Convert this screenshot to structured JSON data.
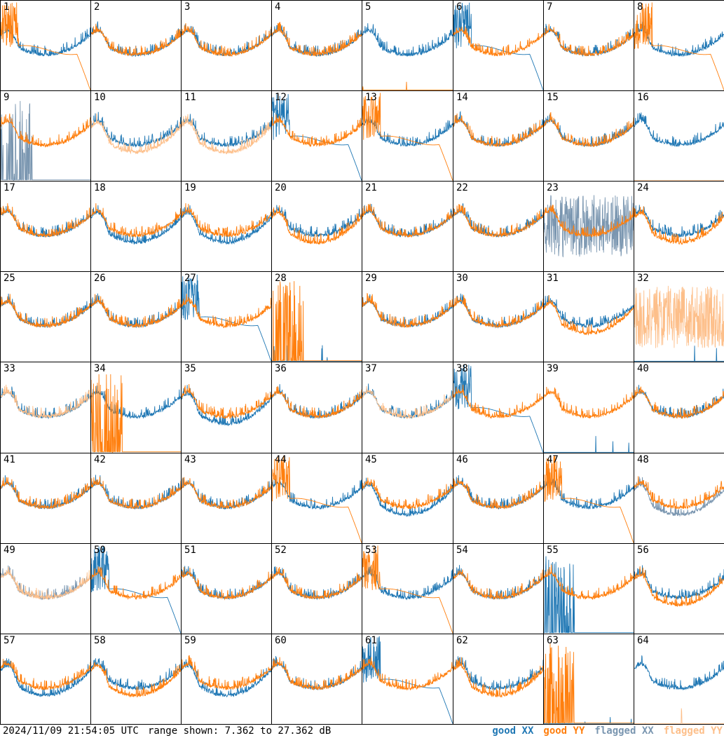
{
  "timestamp": "2024/11/09 21:54:05 UTC",
  "range_text": "range shown: 7.362 to 27.362 dB",
  "legend": [
    {
      "key": "good_xx",
      "label": "good XX",
      "color": "#1f77b4"
    },
    {
      "key": "good_yy",
      "label": "good YY",
      "color": "#ff7f0e"
    },
    {
      "key": "flagged_xx",
      "label": "flagged XX",
      "color": "#7a96b0"
    },
    {
      "key": "flagged_yy",
      "label": "flagged YY",
      "color": "#fdbf8a"
    }
  ],
  "chart_data": {
    "type": "line",
    "title": "",
    "ylabel": "",
    "ylim": [
      7.362,
      27.362
    ],
    "unit": "dB",
    "grid": false,
    "panels": [
      {
        "id": "1",
        "xx": "good",
        "yy": "good",
        "xx_profile": "normal",
        "yy_profile": "rolloff"
      },
      {
        "id": "2",
        "xx": "good",
        "yy": "good",
        "xx_profile": "normal",
        "yy_profile": "normal"
      },
      {
        "id": "3",
        "xx": "good",
        "yy": "good",
        "xx_profile": "normal",
        "yy_profile": "normal"
      },
      {
        "id": "4",
        "xx": "good",
        "yy": "good",
        "xx_profile": "normal",
        "yy_profile": "normal"
      },
      {
        "id": "5",
        "xx": "good",
        "yy": "good",
        "xx_profile": "normal",
        "yy_profile": "dead"
      },
      {
        "id": "6",
        "xx": "good",
        "yy": "good",
        "xx_profile": "rolloff",
        "yy_profile": "normal"
      },
      {
        "id": "7",
        "xx": "good",
        "yy": "good",
        "xx_profile": "normal",
        "yy_profile": "normal"
      },
      {
        "id": "8",
        "xx": "good",
        "yy": "good",
        "xx_profile": "normal",
        "yy_profile": "rolloff"
      },
      {
        "id": "9",
        "xx": "flagged",
        "yy": "good",
        "xx_profile": "spiky",
        "yy_profile": "normal"
      },
      {
        "id": "10",
        "xx": "good",
        "yy": "flagged",
        "xx_profile": "normal",
        "yy_profile": "low"
      },
      {
        "id": "11",
        "xx": "good",
        "yy": "flagged",
        "xx_profile": "normal",
        "yy_profile": "low"
      },
      {
        "id": "12",
        "xx": "good",
        "yy": "good",
        "xx_profile": "rolloff",
        "yy_profile": "normal"
      },
      {
        "id": "13",
        "xx": "good",
        "yy": "good",
        "xx_profile": "normal",
        "yy_profile": "rolloff"
      },
      {
        "id": "14",
        "xx": "good",
        "yy": "good",
        "xx_profile": "normal",
        "yy_profile": "normal"
      },
      {
        "id": "15",
        "xx": "good",
        "yy": "good",
        "xx_profile": "normal",
        "yy_profile": "normal"
      },
      {
        "id": "16",
        "xx": "good",
        "yy": "flagged",
        "xx_profile": "normal",
        "yy_profile": "dead"
      },
      {
        "id": "17",
        "xx": "good",
        "yy": "good",
        "xx_profile": "normal",
        "yy_profile": "normal"
      },
      {
        "id": "18",
        "xx": "good",
        "yy": "good",
        "xx_profile": "low",
        "yy_profile": "normal"
      },
      {
        "id": "19",
        "xx": "good",
        "yy": "good",
        "xx_profile": "low",
        "yy_profile": "normal"
      },
      {
        "id": "20",
        "xx": "good",
        "yy": "good",
        "xx_profile": "normal",
        "yy_profile": "low"
      },
      {
        "id": "21",
        "xx": "good",
        "yy": "good",
        "xx_profile": "normal",
        "yy_profile": "normal"
      },
      {
        "id": "22",
        "xx": "good",
        "yy": "good",
        "xx_profile": "normal",
        "yy_profile": "normal"
      },
      {
        "id": "23",
        "xx": "flagged",
        "yy": "good",
        "xx_profile": "noisy",
        "yy_profile": "normal"
      },
      {
        "id": "24",
        "xx": "good",
        "yy": "good",
        "xx_profile": "normal",
        "yy_profile": "low"
      },
      {
        "id": "25",
        "xx": "good",
        "yy": "good",
        "xx_profile": "normal",
        "yy_profile": "normal"
      },
      {
        "id": "26",
        "xx": "good",
        "yy": "good",
        "xx_profile": "normal",
        "yy_profile": "normal"
      },
      {
        "id": "27",
        "xx": "good",
        "yy": "good",
        "xx_profile": "rolloff",
        "yy_profile": "normal"
      },
      {
        "id": "28",
        "xx": "good",
        "yy": "good",
        "xx_profile": "dead",
        "yy_profile": "spiky"
      },
      {
        "id": "29",
        "xx": "good",
        "yy": "good",
        "xx_profile": "normal",
        "yy_profile": "normal"
      },
      {
        "id": "30",
        "xx": "good",
        "yy": "good",
        "xx_profile": "normal",
        "yy_profile": "normal"
      },
      {
        "id": "31",
        "xx": "good",
        "yy": "good",
        "xx_profile": "normal",
        "yy_profile": "low"
      },
      {
        "id": "32",
        "xx": "good",
        "yy": "flagged",
        "xx_profile": "dead",
        "yy_profile": "noisy"
      },
      {
        "id": "33",
        "xx": "good",
        "yy": "flagged",
        "xx_profile": "normal",
        "yy_profile": "normal"
      },
      {
        "id": "34",
        "xx": "good",
        "yy": "good",
        "xx_profile": "normal",
        "yy_profile": "spiky"
      },
      {
        "id": "35",
        "xx": "good",
        "yy": "good",
        "xx_profile": "low",
        "yy_profile": "normal"
      },
      {
        "id": "36",
        "xx": "good",
        "yy": "good",
        "xx_profile": "normal",
        "yy_profile": "normal"
      },
      {
        "id": "37",
        "xx": "good",
        "yy": "flagged",
        "xx_profile": "normal",
        "yy_profile": "normal"
      },
      {
        "id": "38",
        "xx": "good",
        "yy": "good",
        "xx_profile": "rolloff",
        "yy_profile": "normal"
      },
      {
        "id": "39",
        "xx": "good",
        "yy": "good",
        "xx_profile": "dead",
        "yy_profile": "normal"
      },
      {
        "id": "40",
        "xx": "good",
        "yy": "good",
        "xx_profile": "normal",
        "yy_profile": "normal"
      },
      {
        "id": "41",
        "xx": "good",
        "yy": "good",
        "xx_profile": "normal",
        "yy_profile": "normal"
      },
      {
        "id": "42",
        "xx": "good",
        "yy": "good",
        "xx_profile": "normal",
        "yy_profile": "normal"
      },
      {
        "id": "43",
        "xx": "good",
        "yy": "good",
        "xx_profile": "normal",
        "yy_profile": "normal"
      },
      {
        "id": "44",
        "xx": "good",
        "yy": "good",
        "xx_profile": "normal",
        "yy_profile": "rolloff"
      },
      {
        "id": "45",
        "xx": "good",
        "yy": "good",
        "xx_profile": "low",
        "yy_profile": "normal"
      },
      {
        "id": "46",
        "xx": "good",
        "yy": "good",
        "xx_profile": "normal",
        "yy_profile": "normal"
      },
      {
        "id": "47",
        "xx": "good",
        "yy": "good",
        "xx_profile": "normal",
        "yy_profile": "rolloff"
      },
      {
        "id": "48",
        "xx": "flagged",
        "yy": "good",
        "xx_profile": "low",
        "yy_profile": "normal"
      },
      {
        "id": "49",
        "xx": "flagged",
        "yy": "flagged",
        "xx_profile": "normal",
        "yy_profile": "normal"
      },
      {
        "id": "50",
        "xx": "good",
        "yy": "good",
        "xx_profile": "rolloff",
        "yy_profile": "normal"
      },
      {
        "id": "51",
        "xx": "good",
        "yy": "good",
        "xx_profile": "normal",
        "yy_profile": "normal"
      },
      {
        "id": "52",
        "xx": "good",
        "yy": "good",
        "xx_profile": "normal",
        "yy_profile": "normal"
      },
      {
        "id": "53",
        "xx": "good",
        "yy": "good",
        "xx_profile": "normal",
        "yy_profile": "rolloff"
      },
      {
        "id": "54",
        "xx": "good",
        "yy": "good",
        "xx_profile": "normal",
        "yy_profile": "normal"
      },
      {
        "id": "55",
        "xx": "good",
        "yy": "good",
        "xx_profile": "spiky",
        "yy_profile": "normal"
      },
      {
        "id": "56",
        "xx": "good",
        "yy": "good",
        "xx_profile": "normal",
        "yy_profile": "low"
      },
      {
        "id": "57",
        "xx": "good",
        "yy": "good",
        "xx_profile": "low",
        "yy_profile": "normal"
      },
      {
        "id": "58",
        "xx": "good",
        "yy": "good",
        "xx_profile": "normal",
        "yy_profile": "low"
      },
      {
        "id": "59",
        "xx": "good",
        "yy": "good",
        "xx_profile": "low",
        "yy_profile": "normal"
      },
      {
        "id": "60",
        "xx": "good",
        "yy": "good",
        "xx_profile": "normal",
        "yy_profile": "normal"
      },
      {
        "id": "61",
        "xx": "good",
        "yy": "good",
        "xx_profile": "rolloff",
        "yy_profile": "normal"
      },
      {
        "id": "62",
        "xx": "good",
        "yy": "good",
        "xx_profile": "normal",
        "yy_profile": "low"
      },
      {
        "id": "63",
        "xx": "good",
        "yy": "good",
        "xx_profile": "dead",
        "yy_profile": "spiky"
      },
      {
        "id": "64",
        "xx": "good",
        "yy": "flagged",
        "xx_profile": "normal",
        "yy_profile": "dead"
      }
    ]
  }
}
